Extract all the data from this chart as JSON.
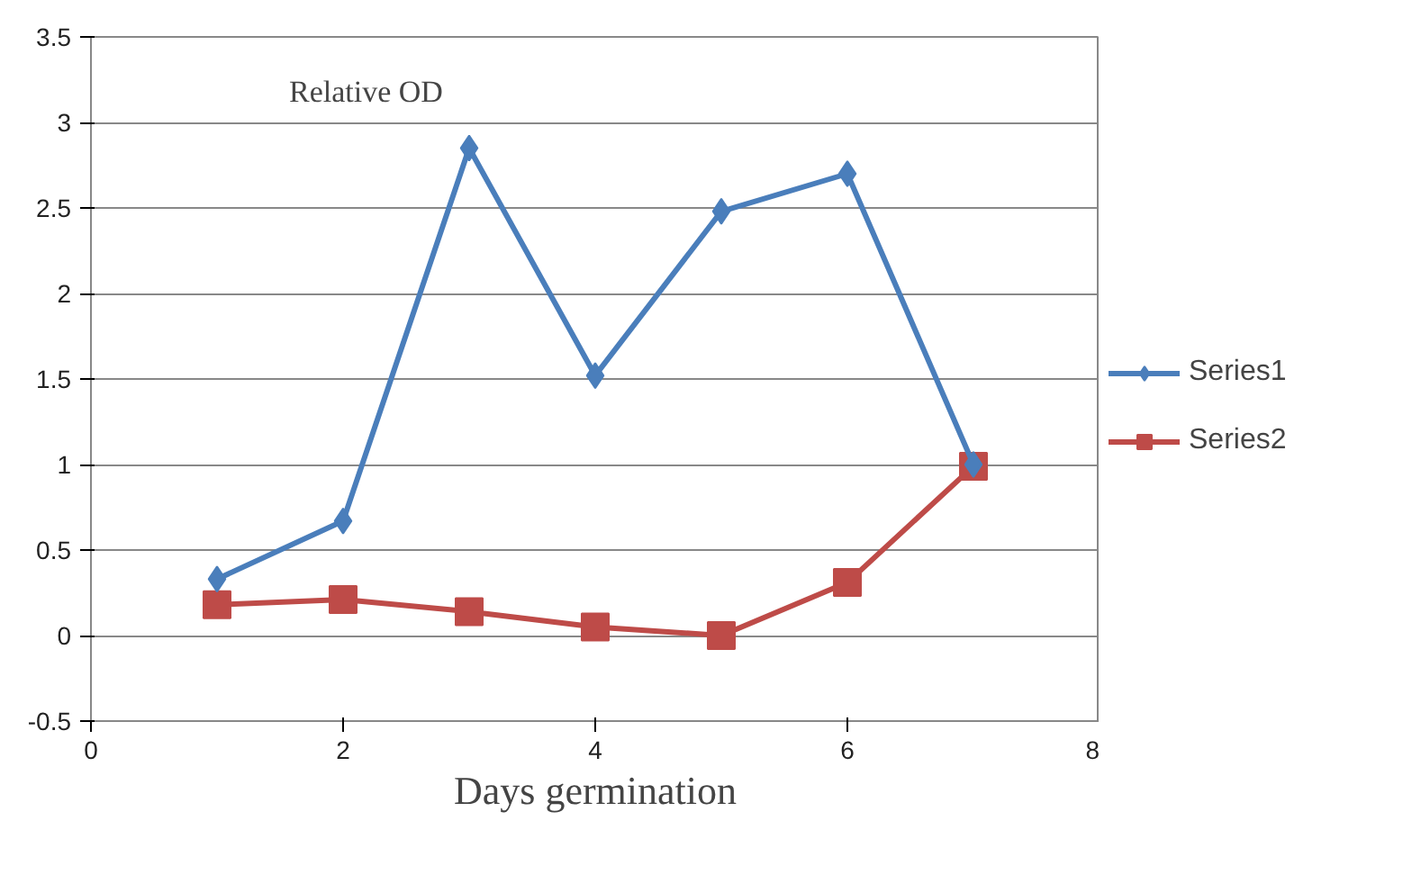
{
  "chart_data": {
    "type": "line",
    "title": "Relative OD",
    "xlabel": "Days germination",
    "x": [
      1,
      2,
      3,
      4,
      5,
      6,
      7
    ],
    "series": [
      {
        "name": "Series1",
        "color": "#4a7ebb",
        "marker": "diamond",
        "values": [
          0.33,
          0.67,
          2.85,
          1.52,
          2.48,
          2.7,
          1.0
        ]
      },
      {
        "name": "Series2",
        "color": "#be4b48",
        "marker": "square",
        "values": [
          0.18,
          0.21,
          0.14,
          0.05,
          0.0,
          0.31,
          0.99
        ]
      }
    ],
    "xlim": [
      0,
      8
    ],
    "xticks": [
      0,
      2,
      4,
      6,
      8
    ],
    "ylim": [
      -0.5,
      3.5
    ],
    "yticks": [
      -0.5,
      0,
      0.5,
      1,
      1.5,
      2,
      2.5,
      3,
      3.5
    ],
    "grid": "y",
    "legend": "right"
  }
}
